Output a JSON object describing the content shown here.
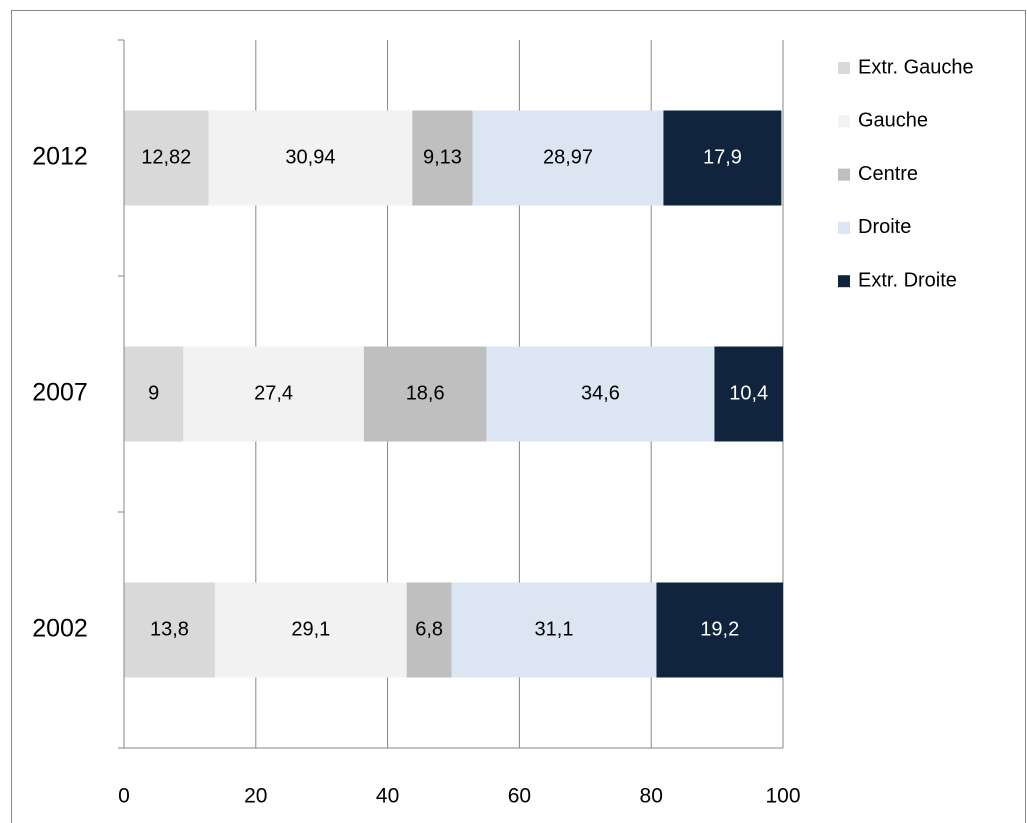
{
  "chart_data": {
    "type": "bar",
    "orientation": "horizontal",
    "stacked": true,
    "categories": [
      "2002",
      "2007",
      "2012"
    ],
    "series": [
      {
        "name": "Extr. Gauche",
        "color": "#d9d9d9",
        "values": [
          13.8,
          9,
          12.82
        ],
        "value_labels": [
          "13,8",
          "9",
          "12,82"
        ]
      },
      {
        "name": "Gauche",
        "color": "#f2f2f2",
        "values": [
          29.1,
          27.4,
          30.94
        ],
        "value_labels": [
          "29,1",
          "27,4",
          "30,94"
        ]
      },
      {
        "name": "Centre",
        "color": "#bfbfbf",
        "values": [
          6.8,
          18.6,
          9.13
        ],
        "value_labels": [
          "6,8",
          "18,6",
          "9,13"
        ]
      },
      {
        "name": "Droite",
        "color": "#dce6f2",
        "values": [
          31.1,
          34.6,
          28.97
        ],
        "value_labels": [
          "31,1",
          "34,6",
          "28,97"
        ]
      },
      {
        "name": "Extr. Droite",
        "color": "#10243e",
        "values": [
          19.2,
          10.4,
          17.9
        ],
        "value_labels": [
          "19,2",
          "10,4",
          "17,9"
        ]
      }
    ],
    "xlim": [
      0,
      100
    ],
    "xticks": [
      0,
      20,
      40,
      60,
      80,
      100
    ],
    "grid": true,
    "legend": "right"
  }
}
